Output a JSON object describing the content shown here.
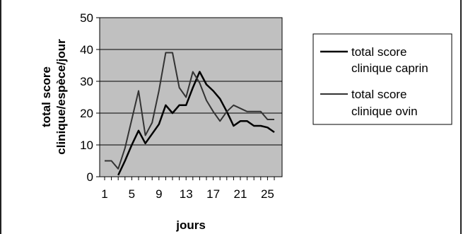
{
  "chart_data": {
    "type": "line",
    "xlabel": "jours",
    "ylabel_lines": [
      "total score",
      "clinique/espèce/jour"
    ],
    "ylim": [
      0,
      50
    ],
    "yticks": [
      0,
      10,
      20,
      30,
      40,
      50
    ],
    "xlim": [
      1,
      26
    ],
    "xticks": [
      1,
      5,
      9,
      13,
      17,
      21,
      25
    ],
    "grid": "horizontal",
    "plot_background": "#c0c0c0",
    "legend_position": "right",
    "series": [
      {
        "name": "total score clinique caprin",
        "name_lines": [
          "total score",
          "clinique caprin"
        ],
        "color": "#000000",
        "x": [
          3,
          4,
          5,
          6,
          7,
          8,
          9,
          10,
          11,
          12,
          13,
          14,
          15,
          16,
          17,
          18,
          19,
          20,
          21,
          22,
          23,
          24,
          25,
          26
        ],
        "y": [
          0.5,
          5,
          10,
          14.5,
          10.5,
          13.5,
          16.5,
          22.5,
          20,
          22.5,
          22.5,
          28,
          33,
          29,
          27,
          24.5,
          20.5,
          16,
          17.5,
          17.5,
          16,
          16,
          15.5,
          14
        ]
      },
      {
        "name": "total score clinique ovin",
        "name_lines": [
          "total score",
          "clinique ovin"
        ],
        "color": "#333333",
        "x": [
          1,
          2,
          3,
          4,
          5,
          6,
          7,
          8,
          9,
          10,
          11,
          12,
          13,
          14,
          15,
          16,
          17,
          18,
          19,
          20,
          21,
          22,
          23,
          24,
          25,
          26
        ],
        "y": [
          5,
          5,
          2.5,
          9,
          18,
          27,
          13,
          17,
          27,
          39,
          39,
          28,
          25,
          33,
          29.5,
          24,
          20.5,
          17.5,
          20.5,
          22.5,
          21.5,
          20.5,
          20.5,
          20.5,
          18,
          18
        ]
      }
    ]
  }
}
